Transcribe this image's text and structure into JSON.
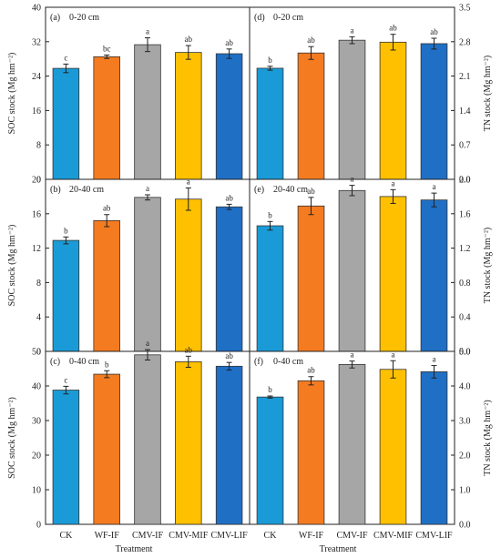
{
  "figure": {
    "bar_colors": [
      "#1a9bd7",
      "#f47b20",
      "#a6a6a6",
      "#ffc000",
      "#1f6fc5"
    ],
    "x_title": "Treatment"
  },
  "chart_data": [
    {
      "id": "a",
      "type": "bar",
      "panel_label": "(a)",
      "depth": "0-20 cm",
      "ylabel": "SOC stock (Mg hm⁻²)",
      "ylim": [
        0,
        40
      ],
      "yticks": [
        "0",
        "8",
        "16",
        "24",
        "32",
        "40"
      ],
      "categories": [
        "CK",
        "WF-IF",
        "CMV-IF",
        "CMV-MIF",
        "CMV-LIF"
      ],
      "values": [
        25.8,
        28.5,
        31.3,
        29.5,
        29.2
      ],
      "errors": [
        1.0,
        0.4,
        1.6,
        1.6,
        1.1
      ],
      "letters": [
        "c",
        "bc",
        "a",
        "ab",
        "ab"
      ]
    },
    {
      "id": "d",
      "type": "bar",
      "panel_label": "(d)",
      "depth": "0-20 cm",
      "ylabel": "TN stock (Mg hm⁻²)",
      "ylim": [
        0,
        3.5
      ],
      "yticks": [
        "0.0",
        "0.7",
        "1.4",
        "2.1",
        "2.8",
        "3.5"
      ],
      "categories": [
        "CK",
        "WF-IF",
        "CMV-IF",
        "CMV-MIF",
        "CMV-LIF"
      ],
      "values": [
        2.26,
        2.57,
        2.83,
        2.79,
        2.76
      ],
      "errors": [
        0.04,
        0.13,
        0.07,
        0.16,
        0.11
      ],
      "letters": [
        "b",
        "ab",
        "a",
        "ab",
        "ab"
      ]
    },
    {
      "id": "b",
      "type": "bar",
      "panel_label": "(b)",
      "depth": "20-40 cm",
      "ylabel": "SOC stock (Mg hm⁻²)",
      "ylim": [
        0,
        20
      ],
      "yticks": [
        "0",
        "4",
        "8",
        "12",
        "16",
        "20"
      ],
      "categories": [
        "CK",
        "WF-IF",
        "CMV-IF",
        "CMV-MIF",
        "CMV-LIF"
      ],
      "values": [
        12.9,
        15.2,
        17.9,
        17.7,
        16.8
      ],
      "errors": [
        0.4,
        0.7,
        0.3,
        1.3,
        0.3
      ],
      "letters": [
        "b",
        "ab",
        "a",
        "a",
        "ab"
      ]
    },
    {
      "id": "e",
      "type": "bar",
      "panel_label": "(e)",
      "depth": "20-40 cm",
      "ylabel": "TN stock (Mg hm⁻²)",
      "ylim": [
        0,
        2.0
      ],
      "yticks": [
        "0.0",
        "0.4",
        "0.8",
        "1.2",
        "1.6",
        "2.0"
      ],
      "categories": [
        "CK",
        "WF-IF",
        "CMV-IF",
        "CMV-MIF",
        "CMV-LIF"
      ],
      "values": [
        1.46,
        1.69,
        1.87,
        1.8,
        1.76
      ],
      "errors": [
        0.05,
        0.1,
        0.06,
        0.08,
        0.08
      ],
      "letters": [
        "b",
        "ab",
        "a",
        "a",
        "a"
      ]
    },
    {
      "id": "c",
      "type": "bar",
      "panel_label": "(c)",
      "depth": "0-40 cm",
      "ylabel": "SOC stock (Mg hm⁻²)",
      "ylim": [
        0,
        50
      ],
      "yticks": [
        "0",
        "10",
        "20",
        "30",
        "40",
        "50"
      ],
      "categories": [
        "CK",
        "WF-IF",
        "CMV-IF",
        "CMV-MIF",
        "CMV-LIF"
      ],
      "values": [
        38.8,
        43.4,
        49.0,
        47.0,
        45.7
      ],
      "errors": [
        1.1,
        1.0,
        1.5,
        1.6,
        1.1
      ],
      "letters": [
        "c",
        "b",
        "a",
        "ab",
        "ab"
      ]
    },
    {
      "id": "f",
      "type": "bar",
      "panel_label": "(f)",
      "depth": "0-40 cm",
      "ylabel": "TN stock (Mg hm⁻²)",
      "ylim": [
        0,
        5.0
      ],
      "yticks": [
        "0.0",
        "1.0",
        "2.0",
        "3.0",
        "4.0",
        "5.0"
      ],
      "categories": [
        "CK",
        "WF-IF",
        "CMV-IF",
        "CMV-MIF",
        "CMV-LIF"
      ],
      "values": [
        3.68,
        4.15,
        4.62,
        4.48,
        4.41
      ],
      "errors": [
        0.03,
        0.12,
        0.1,
        0.25,
        0.18
      ],
      "letters": [
        "b",
        "ab",
        "a",
        "a",
        "a"
      ]
    }
  ]
}
